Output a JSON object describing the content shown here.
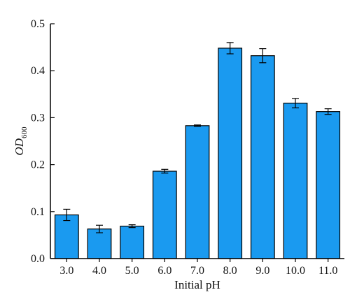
{
  "chart_data": {
    "type": "bar",
    "xlabel": "Initial pH",
    "ylabel": {
      "main": "OD",
      "subscript": "600"
    },
    "categories": [
      "3.0",
      "4.0",
      "5.0",
      "6.0",
      "7.0",
      "8.0",
      "9.0",
      "10.0",
      "11.0"
    ],
    "values": [
      0.093,
      0.063,
      0.069,
      0.186,
      0.283,
      0.448,
      0.432,
      0.331,
      0.313
    ],
    "errors": [
      0.012,
      0.008,
      0.003,
      0.004,
      0.0015,
      0.012,
      0.015,
      0.01,
      0.006
    ],
    "ylim": [
      0,
      0.5
    ],
    "yticks": [
      "0.0",
      "0.1",
      "0.2",
      "0.3",
      "0.4",
      "0.5"
    ],
    "ytick_values": [
      0,
      0.1,
      0.2,
      0.3,
      0.4,
      0.5
    ],
    "bar_color": "#1a9af0",
    "error_bars": true,
    "grid": false,
    "legend": "none"
  }
}
